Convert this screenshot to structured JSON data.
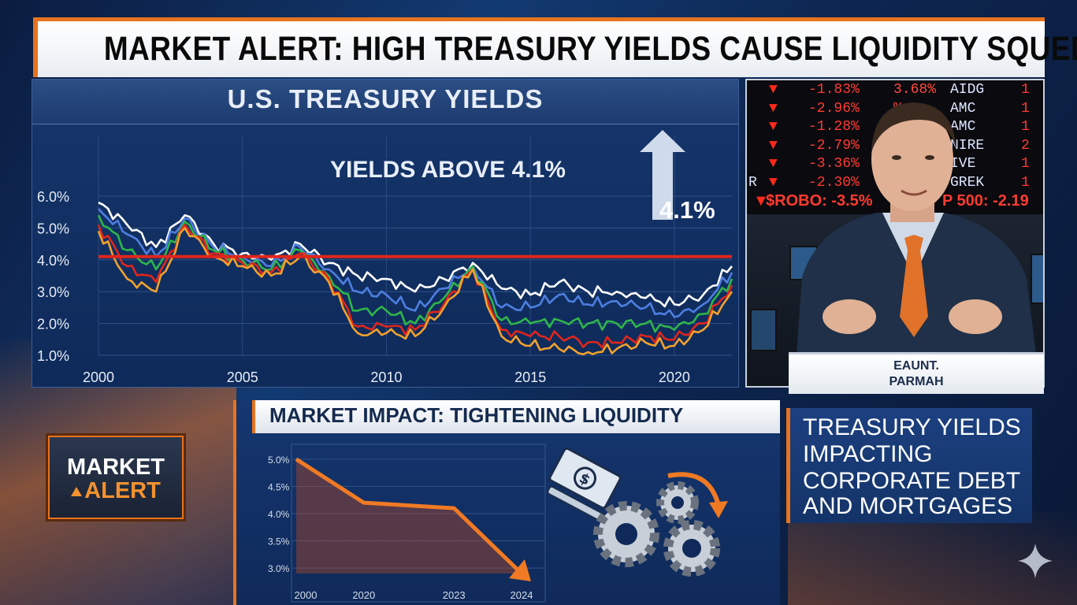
{
  "headline": "MARKET ALERT: HIGH TREASURY YIELDS CAUSE LIQUIDITY SQUEEZE",
  "yields_chart": {
    "title": "U.S. TREASURY YIELDS",
    "callout": "YIELDS ABOVE 4.1%",
    "threshold_label": "4.1%",
    "y_tick_labels": [
      "6.0%",
      "5.0%",
      "4.0%",
      "3.0%",
      "2.0%",
      "1.0%"
    ],
    "x_tick_labels": [
      "2000",
      "2005",
      "2010",
      "2015",
      "2020"
    ],
    "threshold_color": "#e0261c"
  },
  "chart_data": [
    {
      "type": "line",
      "title": "U.S. TREASURY YIELDS",
      "xlabel": "",
      "ylabel": "",
      "xlim": [
        2000,
        2022
      ],
      "ylim": [
        1.0,
        6.0
      ],
      "grid": true,
      "threshold": 4.1,
      "x": [
        2000,
        2001,
        2002,
        2003,
        2004,
        2005,
        2006,
        2007,
        2008,
        2009,
        2010,
        2011,
        2012,
        2013,
        2014,
        2015,
        2016,
        2017,
        2018,
        2019,
        2020,
        2021,
        2022
      ],
      "series": [
        {
          "color": "#ffffff",
          "values": [
            5.8,
            5.1,
            4.4,
            5.4,
            4.5,
            4.2,
            4.0,
            4.5,
            3.9,
            3.5,
            3.4,
            3.0,
            3.4,
            3.9,
            3.1,
            2.9,
            3.3,
            3.0,
            3.0,
            2.8,
            2.6,
            2.9,
            3.8
          ]
        },
        {
          "color": "#4d7fe0",
          "values": [
            5.6,
            4.8,
            4.1,
            5.3,
            4.4,
            4.1,
            3.8,
            4.4,
            3.7,
            3.0,
            2.9,
            2.4,
            3.1,
            3.8,
            2.5,
            2.5,
            2.9,
            2.6,
            2.7,
            2.5,
            2.2,
            2.6,
            3.6
          ]
        },
        {
          "color": "#2fb54a",
          "values": [
            5.4,
            4.3,
            3.7,
            5.2,
            4.3,
            4.0,
            3.7,
            4.3,
            3.5,
            2.4,
            2.4,
            2.0,
            2.8,
            3.8,
            2.1,
            2.0,
            2.1,
            2.0,
            2.0,
            2.0,
            1.8,
            2.3,
            3.4
          ]
        },
        {
          "color": "#e0261c",
          "values": [
            5.1,
            3.8,
            3.3,
            5.1,
            4.2,
            3.9,
            3.6,
            4.2,
            3.4,
            1.9,
            1.9,
            1.8,
            2.6,
            3.7,
            1.8,
            1.6,
            1.6,
            1.4,
            1.4,
            1.6,
            1.5,
            2.0,
            3.2
          ]
        },
        {
          "color": "#f2a12e",
          "values": [
            4.9,
            3.4,
            3.0,
            5.0,
            4.1,
            3.8,
            3.5,
            4.1,
            3.3,
            1.7,
            1.7,
            1.6,
            2.5,
            3.7,
            1.6,
            1.3,
            1.2,
            1.1,
            1.2,
            1.4,
            1.3,
            1.8,
            3.0
          ]
        }
      ]
    },
    {
      "type": "line",
      "title": "MARKET IMPACT: TIGHTENING LIQUIDITY",
      "xlabel": "",
      "ylabel": "",
      "categories": [
        "2000",
        "2020",
        "2023",
        "2024"
      ],
      "values": [
        5.0,
        4.2,
        4.1,
        2.9
      ],
      "ylim": [
        2.9,
        5.1
      ],
      "y_tick_labels": [
        "5.0%",
        "4.5%",
        "4.0%",
        "3.5%",
        "3.0%"
      ],
      "color": "#f07a24"
    }
  ],
  "ticker": {
    "rows": [
      {
        "pct": "-1.83%",
        "mid": "3.68%",
        "sym": "AIDG",
        "right": "1"
      },
      {
        "pct": "-2.96%",
        "mid": "%",
        "sym": "AMC",
        "right": "1"
      },
      {
        "pct": "-1.28%",
        "mid": "",
        "sym": "AMC",
        "right": "1"
      },
      {
        "pct": "-2.79%",
        "mid": "",
        "sym": "NIRE",
        "right": "2"
      },
      {
        "pct": "-3.36%",
        "mid": "",
        "sym": "IVE",
        "right": "1"
      },
      {
        "pct": "-2.30%",
        "mid": "",
        "sym": "GREK",
        "right": "1",
        "pre": "R"
      }
    ],
    "bottom_left": "$ROBO: -3.5%",
    "bottom_right": "P 500: -2.19"
  },
  "anchor": {
    "name_line1": "EAUNT.",
    "name_line2": "PARMAH"
  },
  "badge": {
    "line1": "MARKET",
    "line2": "ALERT"
  },
  "impact": {
    "title": "MARKET IMPACT: TIGHTENING LIQUIDITY"
  },
  "caption": {
    "lines": [
      "TREASURY YIELDS",
      "IMPACTING",
      "CORPORATE DEBT",
      "AND MORTGAGES"
    ]
  },
  "icons": {
    "money": "money-bill-icon",
    "gears": "gears-icon",
    "sparkle": "sparkle-icon"
  }
}
